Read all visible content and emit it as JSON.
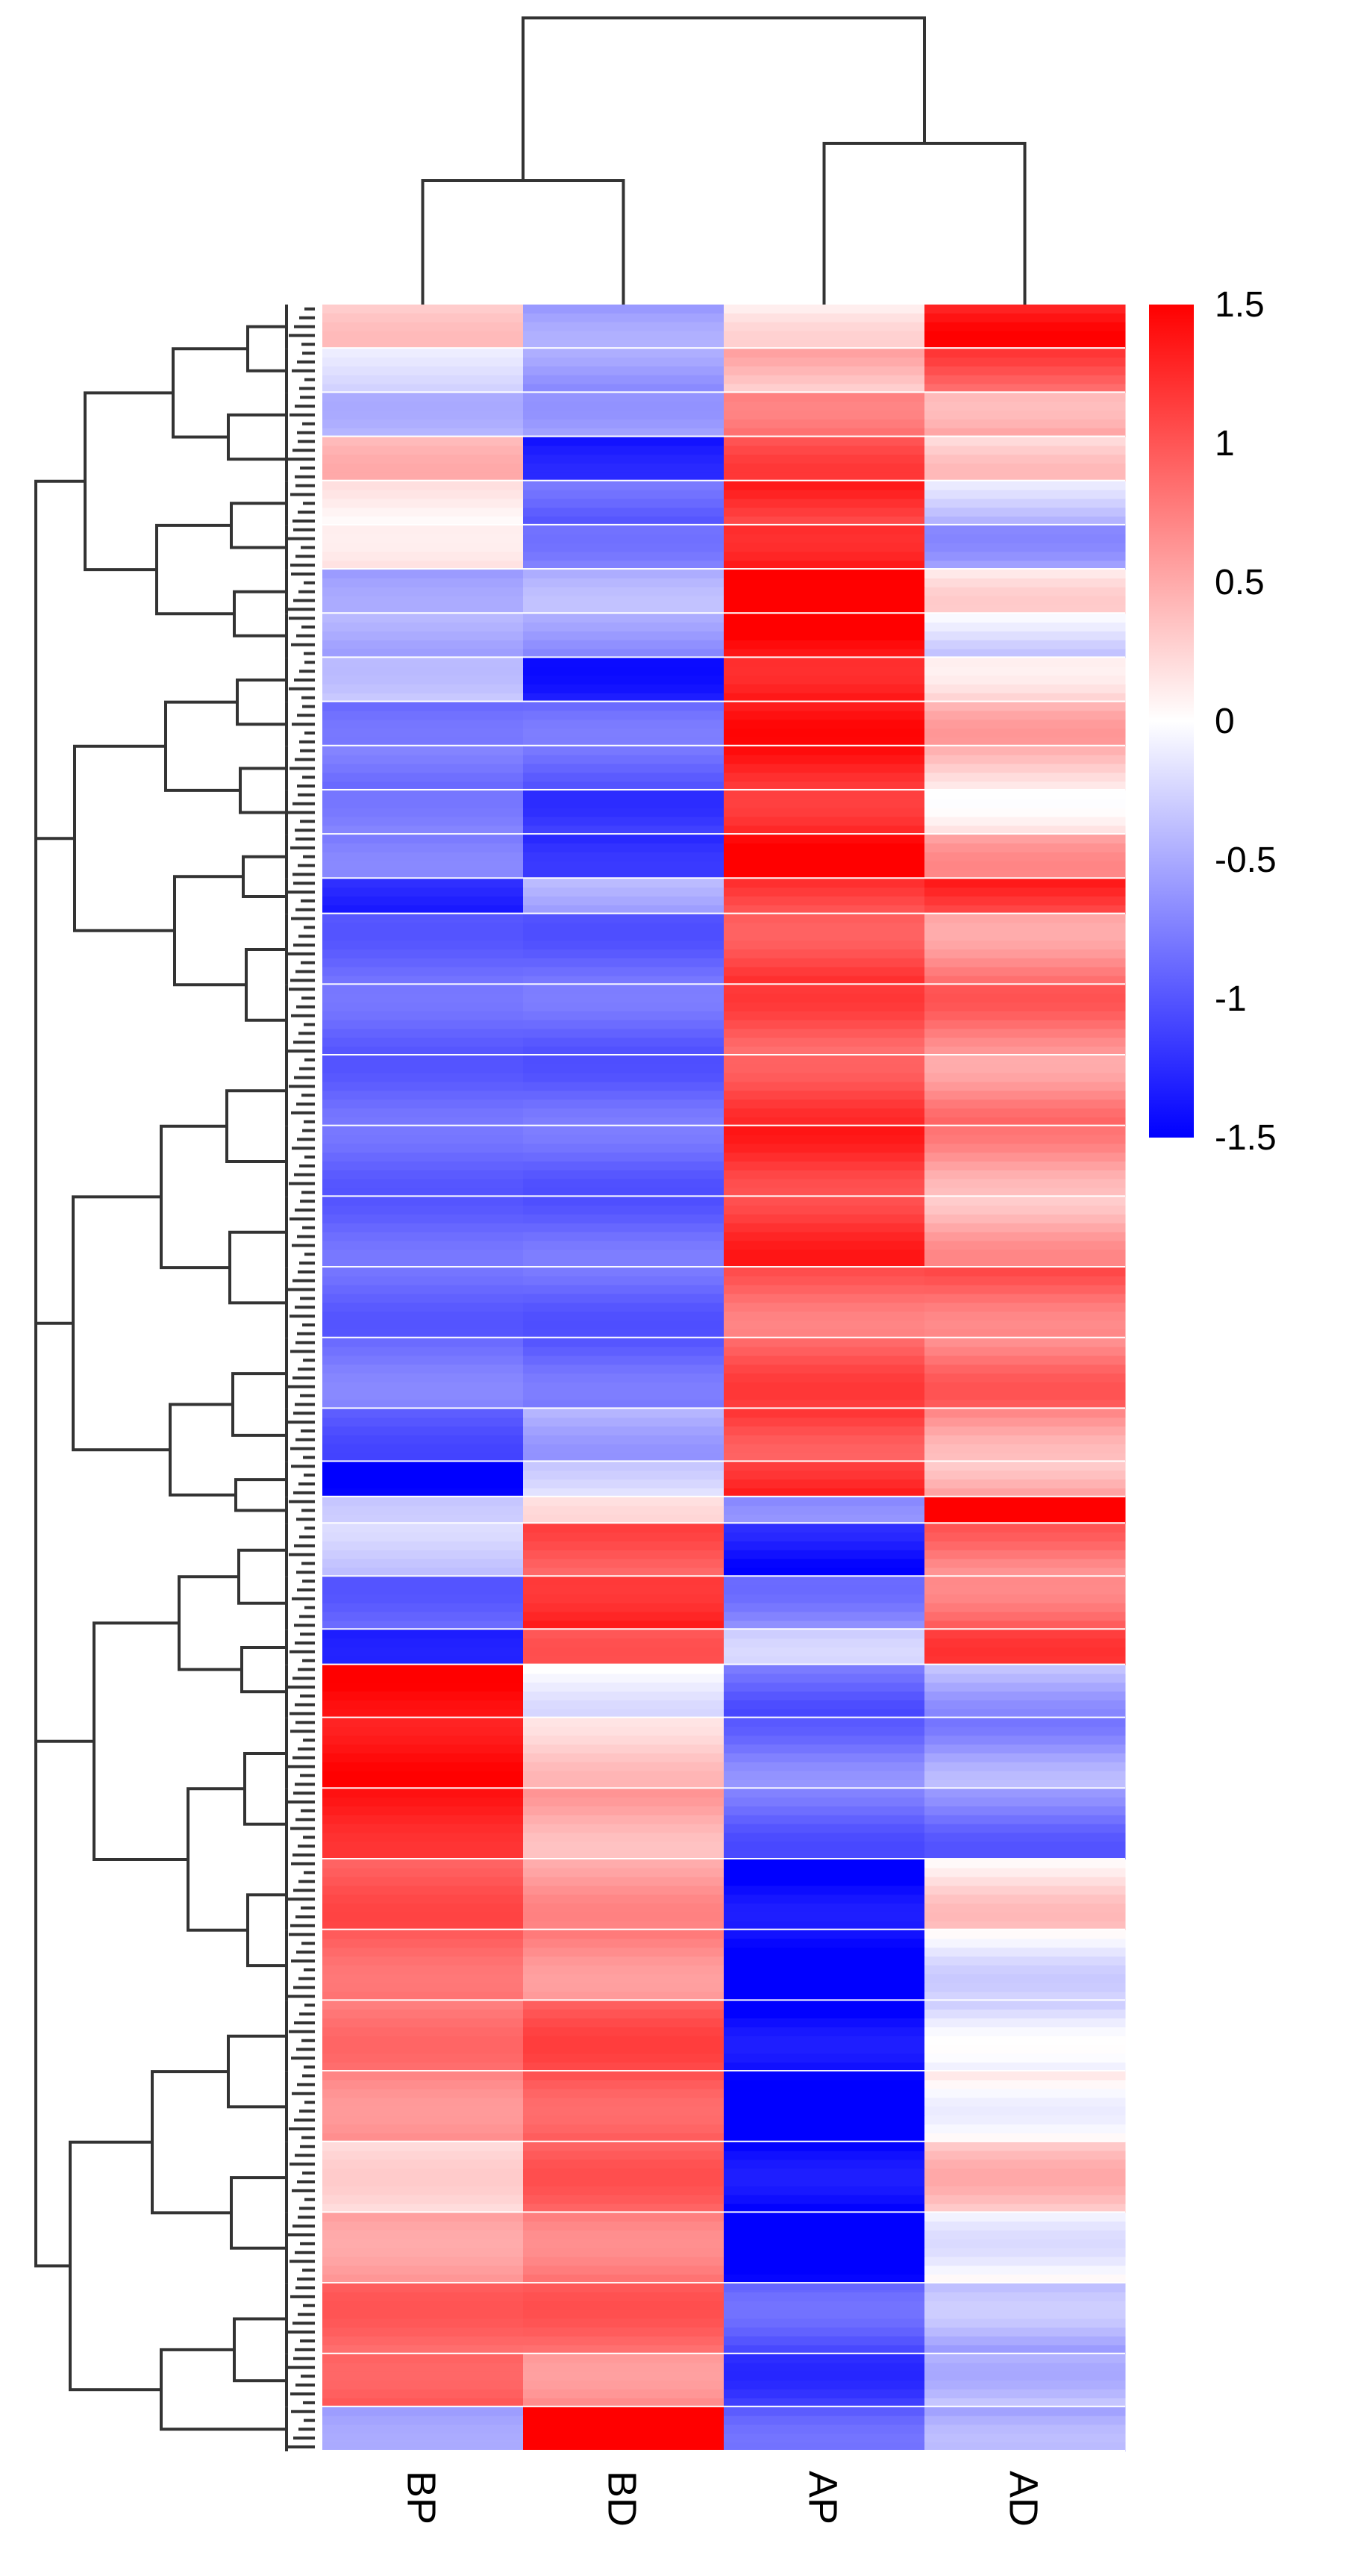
{
  "chart_data": {
    "type": "heatmap",
    "title": "",
    "xlabel": "",
    "ylabel": "",
    "columns": [
      "BP",
      "BD",
      "AP",
      "AD"
    ],
    "column_dendrogram": "((BP,BD),(AP,AD))",
    "row_dendrogram": true,
    "colorbar": {
      "min": -1.5,
      "max": 1.5,
      "ticks": [
        "1.5",
        "1",
        "0.5",
        "0",
        "-0.5",
        "-1",
        "-1.5"
      ],
      "low_color": "#0000ff",
      "mid_color": "#ffffff",
      "high_color": "#ff0000"
    },
    "blocks": [
      {
        "rows": 5,
        "values": [
          0.3,
          -0.6,
          0.1,
          1.3
        ]
      },
      {
        "rows": 5,
        "values": [
          -0.2,
          -0.6,
          0.4,
          1.0
        ]
      },
      {
        "rows": 5,
        "values": [
          -0.4,
          -0.5,
          0.9,
          0.6
        ]
      },
      {
        "rows": 5,
        "values": [
          0.4,
          -1.4,
          1.0,
          0.2
        ]
      },
      {
        "rows": 5,
        "values": [
          0.1,
          -0.9,
          1.2,
          -0.3
        ]
      },
      {
        "rows": 5,
        "values": [
          0.2,
          -0.7,
          1.4,
          -0.5
        ]
      },
      {
        "rows": 5,
        "values": [
          -0.6,
          -0.5,
          1.5,
          0.1
        ]
      },
      {
        "rows": 5,
        "values": [
          -0.5,
          -0.6,
          1.5,
          -0.2
        ]
      },
      {
        "rows": 5,
        "values": [
          -0.3,
          -1.3,
          1.4,
          0.3
        ]
      },
      {
        "rows": 5,
        "values": [
          -0.9,
          -0.9,
          1.3,
          0.4
        ]
      },
      {
        "rows": 5,
        "values": [
          -0.8,
          -0.9,
          1.3,
          0.3
        ]
      },
      {
        "rows": 5,
        "values": [
          -0.7,
          -1.1,
          1.3,
          0.2
        ]
      },
      {
        "rows": 5,
        "values": [
          -0.8,
          -1.3,
          1.4,
          0.5
        ]
      },
      {
        "rows": 4,
        "values": [
          -1.3,
          -0.5,
          1.1,
          1.2
        ]
      },
      {
        "rows": 8,
        "values": [
          -0.9,
          -0.9,
          1.1,
          0.7
        ]
      },
      {
        "rows": 8,
        "values": [
          -0.9,
          -0.9,
          1.0,
          0.8
        ]
      },
      {
        "rows": 8,
        "values": [
          -0.9,
          -0.9,
          1.1,
          0.7
        ]
      },
      {
        "rows": 8,
        "values": [
          -0.9,
          -0.9,
          1.2,
          0.6
        ]
      },
      {
        "rows": 8,
        "values": [
          -0.9,
          -0.9,
          1.2,
          0.5
        ]
      },
      {
        "rows": 8,
        "values": [
          -0.9,
          -0.9,
          0.9,
          0.9
        ]
      },
      {
        "rows": 8,
        "values": [
          -0.8,
          -0.9,
          1.0,
          0.8
        ]
      },
      {
        "rows": 6,
        "values": [
          -1.0,
          -0.5,
          1.1,
          0.6
        ]
      },
      {
        "rows": 4,
        "values": [
          -1.5,
          -0.2,
          1.3,
          0.5
        ]
      },
      {
        "rows": 3,
        "values": [
          -0.4,
          0.1,
          -0.8,
          1.4
        ]
      },
      {
        "rows": 6,
        "values": [
          -0.3,
          1.0,
          -1.4,
          0.8
        ]
      },
      {
        "rows": 6,
        "values": [
          -0.9,
          1.3,
          -0.7,
          0.9
        ]
      },
      {
        "rows": 4,
        "values": [
          -1.4,
          0.9,
          -0.4,
          1.0
        ]
      },
      {
        "rows": 6,
        "values": [
          1.5,
          -0.1,
          -0.9,
          -0.5
        ]
      },
      {
        "rows": 8,
        "values": [
          1.4,
          0.3,
          -0.8,
          -0.6
        ]
      },
      {
        "rows": 8,
        "values": [
          1.3,
          0.5,
          -0.9,
          -0.8
        ]
      },
      {
        "rows": 8,
        "values": [
          1.0,
          0.6,
          -1.5,
          0.2
        ]
      },
      {
        "rows": 8,
        "values": [
          0.9,
          0.7,
          -1.5,
          -0.1
        ]
      },
      {
        "rows": 8,
        "values": [
          0.8,
          1.0,
          -1.5,
          -0.2
        ]
      },
      {
        "rows": 8,
        "values": [
          0.7,
          1.0,
          -1.5,
          0.1
        ]
      },
      {
        "rows": 8,
        "values": [
          0.2,
          0.9,
          -1.5,
          0.3
        ]
      },
      {
        "rows": 8,
        "values": [
          0.6,
          0.8,
          -1.5,
          0.0
        ]
      },
      {
        "rows": 8,
        "values": [
          0.9,
          0.9,
          -1.0,
          -0.5
        ]
      },
      {
        "rows": 6,
        "values": [
          1.0,
          0.7,
          -1.1,
          -0.3
        ]
      },
      {
        "rows": 5,
        "values": [
          -0.6,
          1.5,
          -1.0,
          -0.6
        ]
      }
    ]
  }
}
